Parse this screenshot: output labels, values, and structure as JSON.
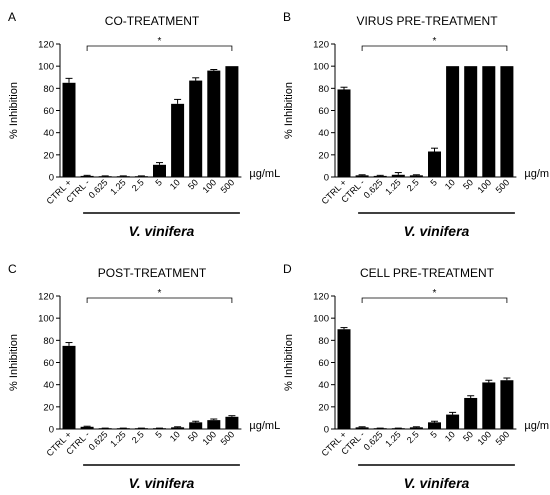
{
  "colors": {
    "bar": "#000000",
    "axis": "#000000",
    "background": "#ffffff"
  },
  "chart_data": [
    {
      "type": "bar",
      "panel_letter": "A",
      "title": "CO-TREATMENT",
      "ylabel": "% Inhibition",
      "ylim": [
        0,
        120
      ],
      "yticks": [
        0,
        20,
        40,
        60,
        80,
        100,
        120
      ],
      "categories": [
        "CTRL +",
        "CTRL -",
        "0.625",
        "1.25",
        "2.5",
        "5",
        "10",
        "50",
        "100",
        "500"
      ],
      "values": [
        85,
        1,
        0.5,
        0.5,
        0.5,
        11,
        66,
        87,
        96,
        100
      ],
      "errors": [
        4,
        0.5,
        0.5,
        0.5,
        0.5,
        2,
        4,
        2.5,
        1,
        0
      ],
      "unit": "µg/mL",
      "group_label": "V. vinifera",
      "significance": "*"
    },
    {
      "type": "bar",
      "panel_letter": "B",
      "title": "VIRUS PRE-TREATMENT",
      "ylabel": "% Inhibition",
      "ylim": [
        0,
        120
      ],
      "yticks": [
        0,
        20,
        40,
        60,
        80,
        100,
        120
      ],
      "categories": [
        "CTRL +",
        "CTRL -",
        "0.625",
        "1.25",
        "2.5",
        "5",
        "10",
        "50",
        "100",
        "500"
      ],
      "values": [
        79,
        1.5,
        1,
        2,
        1.5,
        23,
        100,
        100,
        100,
        100
      ],
      "errors": [
        2,
        0.5,
        0.5,
        2,
        0.5,
        3,
        0,
        0,
        0,
        0
      ],
      "unit": "µg/mL",
      "group_label": "V. vinifera",
      "significance": "*"
    },
    {
      "type": "bar",
      "panel_letter": "C",
      "title": "POST-TREATMENT",
      "ylabel": "% Inhibition",
      "ylim": [
        0,
        120
      ],
      "yticks": [
        0,
        20,
        40,
        60,
        80,
        100,
        120
      ],
      "categories": [
        "CTRL +",
        "CTRL -",
        "0.625",
        "1.25",
        "2.5",
        "5",
        "10",
        "50",
        "100",
        "500"
      ],
      "values": [
        75,
        2,
        0.5,
        0.5,
        0.5,
        0.5,
        1.5,
        6,
        8,
        11
      ],
      "errors": [
        3,
        0.5,
        0.3,
        0.3,
        0.3,
        0.3,
        0.5,
        1,
        1,
        1
      ],
      "unit": "µg/mL",
      "group_label": "V. vinifera",
      "significance": "*"
    },
    {
      "type": "bar",
      "panel_letter": "D",
      "title": "CELL PRE-TREATMENT",
      "ylabel": "% Inhibition",
      "ylim": [
        0,
        120
      ],
      "yticks": [
        0,
        20,
        40,
        60,
        80,
        100,
        120
      ],
      "categories": [
        "CTRL +",
        "CTRL -",
        "0.625",
        "1.25",
        "2.5",
        "5",
        "10",
        "50",
        "100",
        "500"
      ],
      "values": [
        90,
        1.5,
        0.5,
        0.5,
        1.5,
        6,
        13,
        28,
        42,
        44
      ],
      "errors": [
        1.5,
        0.5,
        0.3,
        0.3,
        0.5,
        1,
        2,
        2,
        2,
        2
      ],
      "unit": "µg/mL",
      "group_label": "V. vinifera",
      "significance": "*"
    }
  ]
}
